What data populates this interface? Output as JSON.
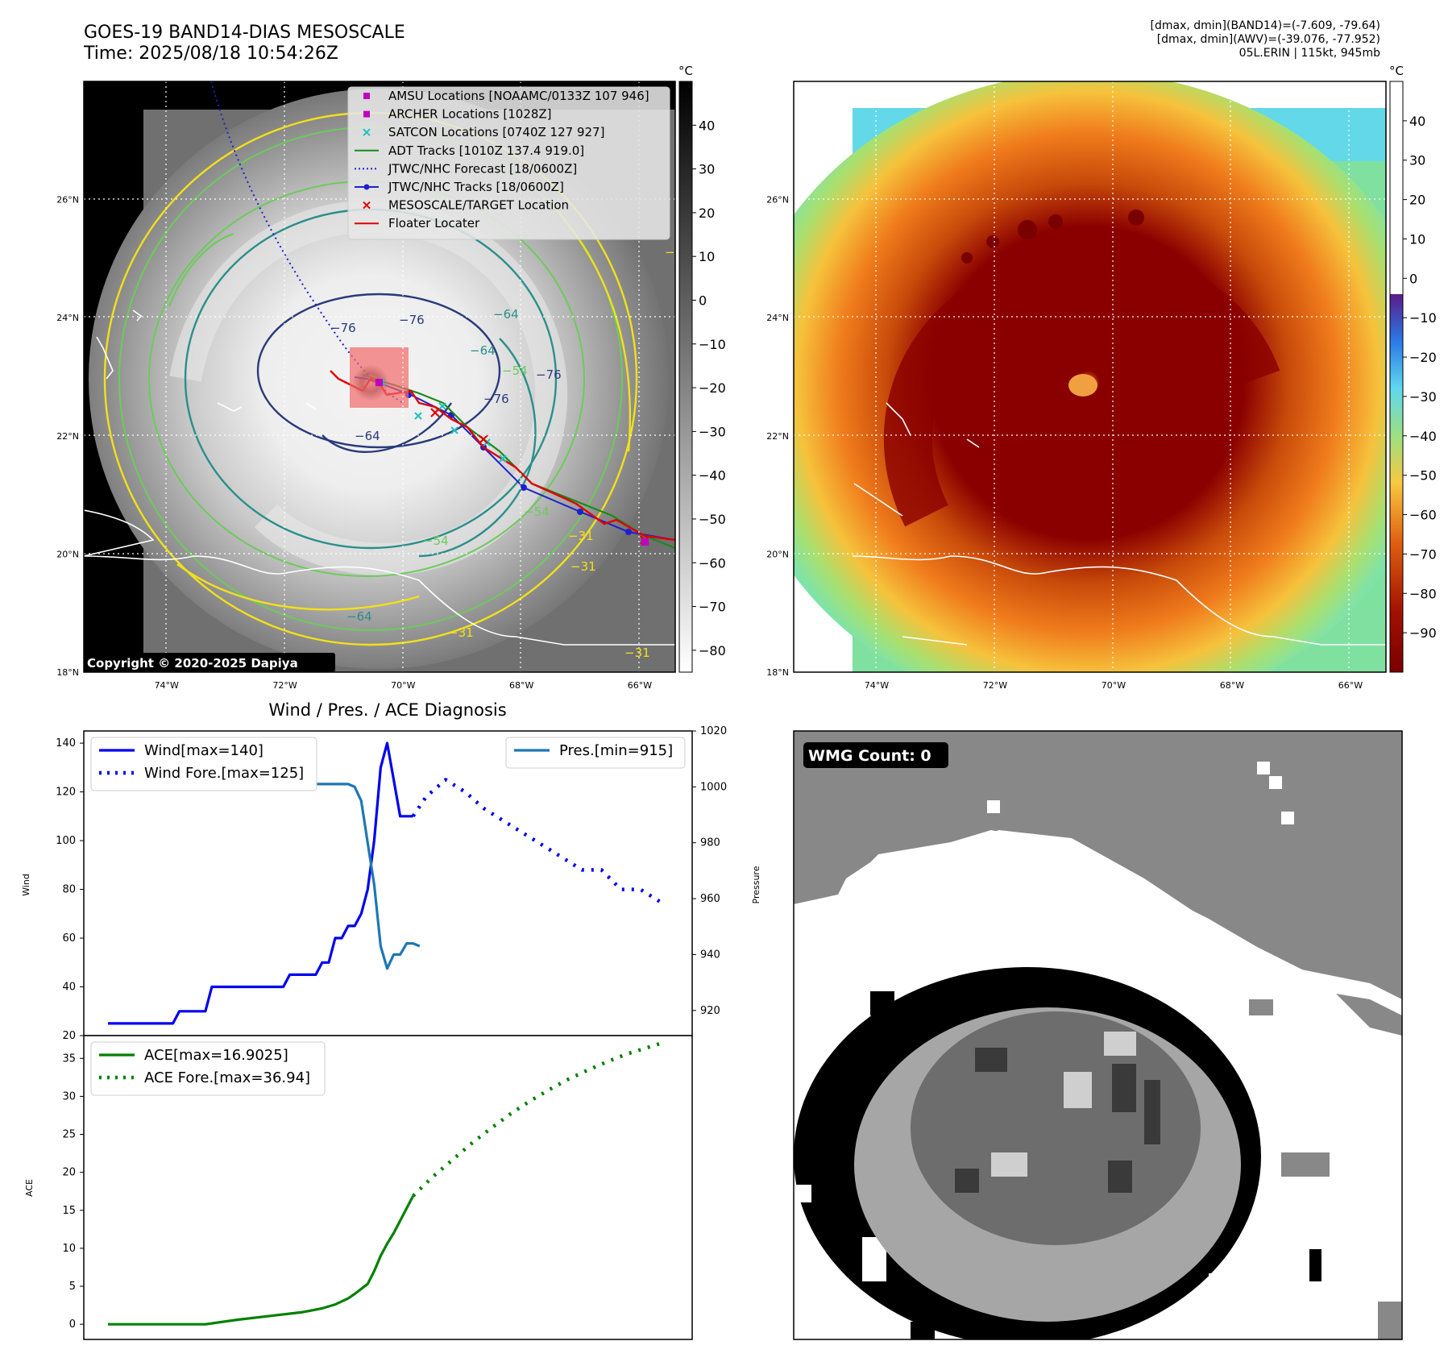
{
  "header": {
    "title_line1": "GOES-19 BAND14-DIAS MESOSCALE",
    "title_line2": "Time: 2025/08/18 10:54:26Z",
    "info_line1": "[dmax, dmin](BAND14)=(-7.609, -79.64)",
    "info_line2": "[dmax, dmin](AWV)=(-39.076, -77.952)",
    "info_line3": "05L.ERIN | 115kt, 945mb"
  },
  "map_axes": {
    "lat_ticks": [
      "26°N",
      "24°N",
      "22°N",
      "20°N",
      "18°N"
    ],
    "lat_values": [
      26,
      24,
      22,
      20,
      18
    ],
    "lon_ticks": [
      "74°W",
      "72°W",
      "70°W",
      "68°W",
      "66°W"
    ],
    "lon_values": [
      -74,
      -72,
      -70,
      -68,
      -66
    ],
    "lat_range": [
      18,
      28
    ],
    "lon_range": [
      -75.4,
      -65.4
    ]
  },
  "ir_panel": {
    "colorbar_unit": "°C",
    "colorbar_ticks": [
      "40",
      "30",
      "20",
      "10",
      "0",
      "−10",
      "−20",
      "−30",
      "−40",
      "−50",
      "−60",
      "−70",
      "−80"
    ],
    "colorbar_values": [
      40,
      30,
      20,
      10,
      0,
      -10,
      -20,
      -30,
      -40,
      -50,
      -60,
      -70,
      -80
    ],
    "colorbar_range": [
      -85,
      50
    ],
    "copyright": "Copyright © 2020-2025 Dapiya",
    "contour_labels": [
      "−76",
      "−76",
      "−64",
      "−64",
      "−76",
      "−54",
      "−54",
      "−64",
      "−76",
      "−31",
      "−31",
      "−54",
      "−64",
      "−31",
      "−31",
      "−31"
    ],
    "legend": [
      {
        "label": "AMSU Locations [NOAAMC/0133Z 107 946]",
        "marker": "square",
        "color": "#c000c0"
      },
      {
        "label": "ARCHER Locations [1028Z]",
        "marker": "square",
        "color": "#c000c0"
      },
      {
        "label": "SATCON Locations [0740Z 127 927]",
        "marker": "x",
        "color": "#20c0c0"
      },
      {
        "label": "ADT Tracks [1010Z 137.4 919.0]",
        "marker": "line",
        "color": "#1a8a1a"
      },
      {
        "label": "JTWC/NHC Forecast [18/0600Z]",
        "marker": "dotted",
        "color": "#1f1fcc"
      },
      {
        "label": "JTWC/NHC Tracks [18/0600Z]",
        "marker": "line-dot",
        "color": "#1f1fcc"
      },
      {
        "label": "MESOSCALE/TARGET Location",
        "marker": "x",
        "color": "#e00000"
      },
      {
        "label": "Floater Locater",
        "marker": "line",
        "color": "#e00000"
      }
    ]
  },
  "awv_panel": {
    "colorbar_unit": "°C",
    "colorbar_ticks": [
      "40",
      "30",
      "20",
      "10",
      "0",
      "−10",
      "−20",
      "−30",
      "−40",
      "−50",
      "−60",
      "−70",
      "−80",
      "−90"
    ],
    "colorbar_values": [
      40,
      30,
      20,
      10,
      0,
      -10,
      -20,
      -30,
      -40,
      -50,
      -60,
      -70,
      -80,
      -90
    ],
    "colorbar_range": [
      -100,
      50
    ]
  },
  "chart_data": [
    {
      "type": "line",
      "title": "Wind / Pres. / ACE Diagnosis",
      "ylabel": "Wind",
      "y2label": "Pressure",
      "ylim": [
        20,
        145
      ],
      "y2lim": [
        911,
        1020
      ],
      "yticks": [
        20,
        40,
        60,
        80,
        100,
        120,
        140
      ],
      "y2ticks": [
        920,
        940,
        960,
        980,
        1000,
        1020
      ],
      "series": [
        {
          "name": "Wind[max=140]",
          "style": "solid",
          "color": "#0000ee",
          "axis": "left",
          "x": [
            0,
            4,
            8,
            12,
            16,
            20,
            24,
            28,
            32,
            36,
            40,
            44,
            48,
            52,
            56,
            60,
            64,
            68,
            72,
            76,
            80,
            84,
            88,
            92,
            96,
            100,
            104,
            108,
            112,
            116,
            120,
            124,
            128,
            132,
            136,
            140,
            144,
            148,
            152,
            156,
            160,
            164,
            168,
            172,
            176,
            180,
            184,
            188
          ],
          "y": [
            25,
            25,
            25,
            25,
            25,
            25,
            25,
            25,
            25,
            25,
            25,
            30,
            30,
            30,
            30,
            30,
            40,
            40,
            40,
            40,
            40,
            40,
            40,
            40,
            40,
            40,
            40,
            40,
            45,
            45,
            45,
            45,
            45,
            50,
            50,
            60,
            60,
            65,
            65,
            70,
            80,
            100,
            130,
            140,
            125,
            110,
            110,
            110
          ]
        },
        {
          "name": "Wind Fore.[max=125]",
          "style": "dotted",
          "color": "#0000ee",
          "axis": "left",
          "x": [
            188,
            196,
            208,
            220,
            232,
            244,
            256,
            268,
            280,
            292,
            304,
            316,
            328,
            340
          ],
          "y": [
            110,
            118,
            125,
            120,
            113,
            108,
            103,
            98,
            93,
            88,
            88,
            80,
            80,
            75
          ]
        },
        {
          "name": "Pres.[min=915]",
          "style": "solid",
          "color": "#1f77b4",
          "axis": "right",
          "x": [
            0,
            4,
            8,
            12,
            16,
            20,
            24,
            28,
            32,
            36,
            40,
            44,
            48,
            52,
            56,
            60,
            64,
            68,
            72,
            76,
            80,
            84,
            88,
            92,
            96,
            100,
            104,
            108,
            112,
            116,
            120,
            124,
            128,
            132,
            136,
            140,
            144,
            148,
            152,
            156,
            160,
            164,
            168,
            172,
            176,
            180,
            184,
            188,
            192
          ],
          "y": [
            1013,
            1013,
            1013,
            1008,
            1007,
            1006,
            1006,
            1006,
            1006,
            1006,
            1006,
            1006,
            1006,
            1005,
            1005,
            1005,
            1004,
            1004,
            1004,
            1005,
            1005,
            1004,
            1004,
            1003,
            1003,
            1003,
            1003,
            1003,
            1003,
            1001,
            1001,
            1001,
            1001,
            1001,
            1001,
            1001,
            1001,
            1001,
            1000,
            995,
            980,
            965,
            943,
            935,
            940,
            940,
            944,
            944,
            943
          ]
        }
      ],
      "legend": [
        "Wind[max=140]",
        "Wind Fore.[max=125]",
        "Pres.[min=915]"
      ]
    },
    {
      "type": "line",
      "ylabel": "ACE",
      "ylim": [
        -2,
        38
      ],
      "yticks": [
        0,
        5,
        10,
        15,
        20,
        25,
        30,
        35
      ],
      "series": [
        {
          "name": "ACE[max=16.9025]",
          "style": "solid",
          "color": "#008000",
          "x": [
            0,
            40,
            60,
            80,
            100,
            120,
            132,
            140,
            148,
            152,
            160,
            164,
            168,
            172,
            176,
            188
          ],
          "y": [
            0,
            0,
            0,
            0.6,
            1.1,
            1.6,
            2.1,
            2.6,
            3.4,
            4.0,
            5.3,
            7.0,
            9.0,
            10.6,
            12.0,
            16.9
          ]
        },
        {
          "name": "ACE Fore.[max=36.94]",
          "style": "dotted",
          "color": "#008000",
          "x": [
            188,
            200,
            212,
            224,
            236,
            248,
            260,
            272,
            284,
            296,
            308,
            320,
            332,
            340
          ],
          "y": [
            16.9,
            19.4,
            21.6,
            23.8,
            25.8,
            27.7,
            29.4,
            30.9,
            32.3,
            33.5,
            34.6,
            35.6,
            36.4,
            36.94
          ]
        }
      ],
      "legend": [
        "ACE[max=16.9025]",
        "ACE Fore.[max=36.94]"
      ]
    }
  ],
  "wmg_panel": {
    "badge": "WMG Count: 0"
  }
}
